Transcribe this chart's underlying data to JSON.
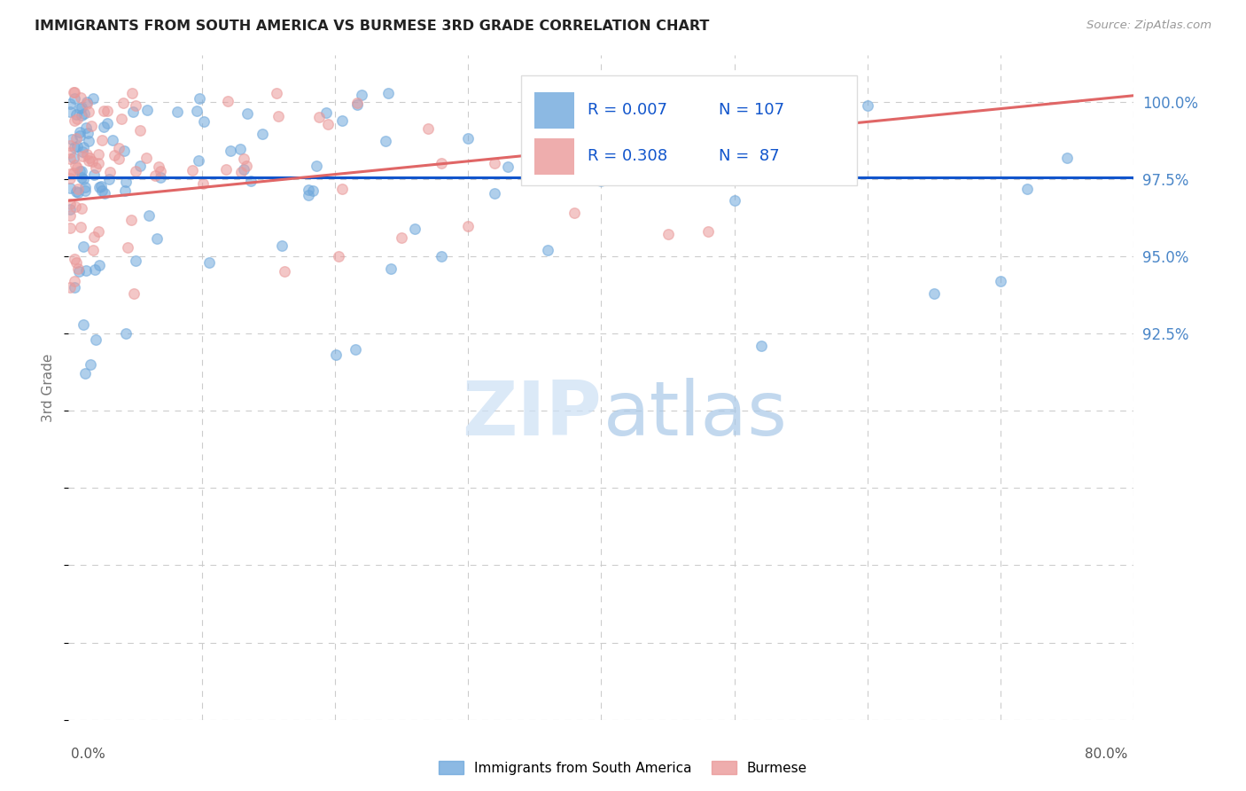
{
  "title": "IMMIGRANTS FROM SOUTH AMERICA VS BURMESE 3RD GRADE CORRELATION CHART",
  "source": "Source: ZipAtlas.com",
  "ylabel": "3rd Grade",
  "xmin": 0.0,
  "xmax": 80.0,
  "ymin": 80.0,
  "ymax": 101.5,
  "blue_color": "#6fa8dc",
  "blue_edge_color": "#6fa8dc",
  "pink_color": "#ea9999",
  "pink_edge_color": "#ea9999",
  "blue_line_color": "#1155cc",
  "pink_line_color": "#e06666",
  "right_axis_color": "#4a86c8",
  "legend_text_color": "#1155cc",
  "grid_color": "#cccccc",
  "title_color": "#222222",
  "source_color": "#999999",
  "ylabel_color": "#777777",
  "xlabel_color": "#555555",
  "legend_box_color": "#dddddd",
  "watermark_zip_color": "#cce0f5",
  "watermark_atlas_color": "#a8c8e8",
  "blue_trend_y0": 97.55,
  "blue_trend_y1": 97.55,
  "pink_trend_y0": 96.8,
  "pink_trend_y1": 100.2,
  "right_yticks": [
    92.5,
    95.0,
    97.5,
    100.0
  ],
  "right_yticklabels": [
    "92.5%",
    "95.0%",
    "97.5%",
    "100.0%"
  ],
  "scatter_marker_size": 70,
  "scatter_alpha": 0.55
}
